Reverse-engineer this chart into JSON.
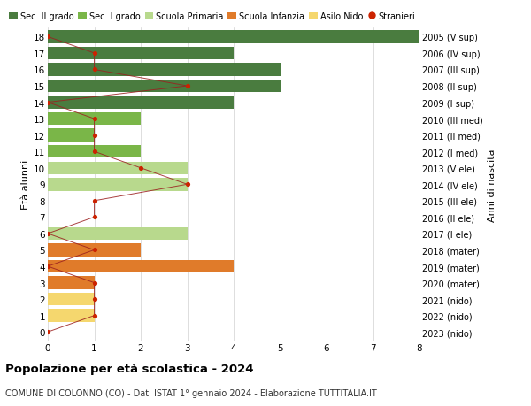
{
  "ages": [
    18,
    17,
    16,
    15,
    14,
    13,
    12,
    11,
    10,
    9,
    8,
    7,
    6,
    5,
    4,
    3,
    2,
    1,
    0
  ],
  "years": [
    "2005 (V sup)",
    "2006 (IV sup)",
    "2007 (III sup)",
    "2008 (II sup)",
    "2009 (I sup)",
    "2010 (III med)",
    "2011 (II med)",
    "2012 (I med)",
    "2013 (V ele)",
    "2014 (IV ele)",
    "2015 (III ele)",
    "2016 (II ele)",
    "2017 (I ele)",
    "2018 (mater)",
    "2019 (mater)",
    "2020 (mater)",
    "2021 (nido)",
    "2022 (nido)",
    "2023 (nido)"
  ],
  "bar_values": [
    8,
    4,
    5,
    5,
    4,
    2,
    1,
    2,
    3,
    3,
    0,
    0,
    3,
    2,
    4,
    1,
    1,
    1,
    0
  ],
  "bar_colors": [
    "#4a7c3f",
    "#4a7c3f",
    "#4a7c3f",
    "#4a7c3f",
    "#4a7c3f",
    "#7ab648",
    "#7ab648",
    "#7ab648",
    "#b8d98d",
    "#b8d98d",
    "#b8d98d",
    "#b8d98d",
    "#b8d98d",
    "#e07b2a",
    "#e07b2a",
    "#e07b2a",
    "#f5d76e",
    "#f5d76e",
    "#f5d76e"
  ],
  "stranieri_x": [
    0,
    1,
    1,
    3,
    0,
    1,
    1,
    1,
    2,
    3,
    1,
    1,
    0,
    1,
    0,
    1,
    1,
    1,
    0
  ],
  "legend_labels": [
    "Sec. II grado",
    "Sec. I grado",
    "Scuola Primaria",
    "Scuola Infanzia",
    "Asilo Nido",
    "Stranieri"
  ],
  "legend_colors": [
    "#4a7c3f",
    "#7ab648",
    "#b8d98d",
    "#e07b2a",
    "#f5d76e",
    "#cc2200"
  ],
  "ylabel_left": "Età alunni",
  "ylabel_right": "Anni di nascita",
  "title": "Popolazione per età scolastica - 2024",
  "subtitle": "COMUNE DI COLONNO (CO) - Dati ISTAT 1° gennaio 2024 - Elaborazione TUTTITALIA.IT",
  "xlim": [
    0,
    8
  ],
  "background_color": "#ffffff",
  "grid_color": "#d0d0d0",
  "bar_height": 0.78,
  "stranieri_color": "#cc2200",
  "stranieri_line_color": "#9b2020"
}
